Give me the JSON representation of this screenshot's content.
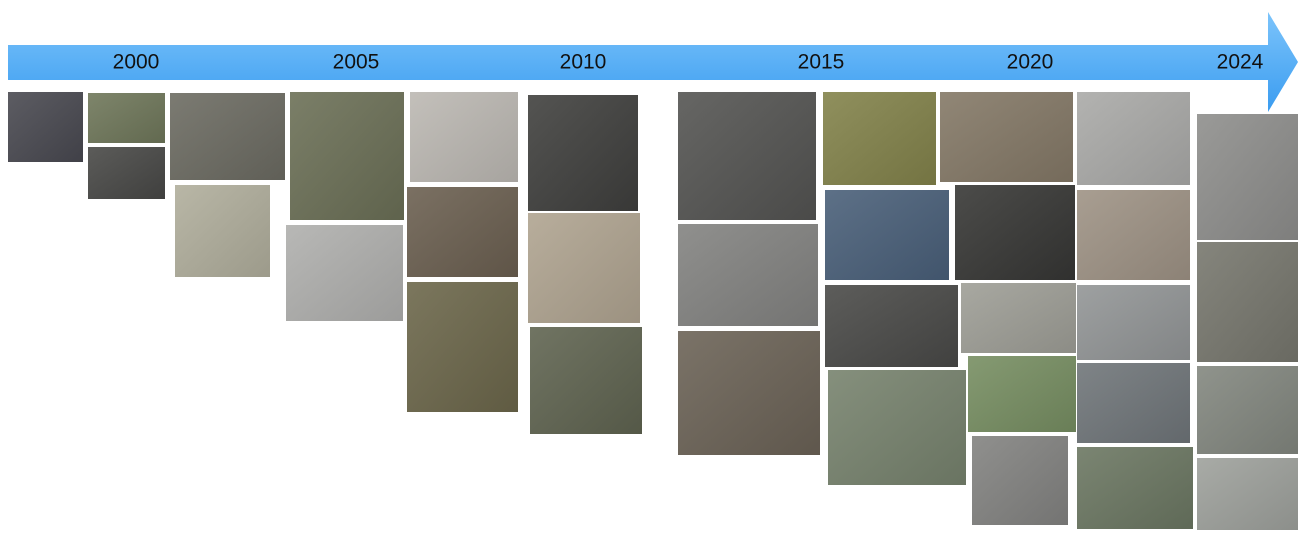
{
  "timeline": {
    "labels": [
      "2000",
      "2005",
      "2010",
      "2015",
      "2020",
      "2024"
    ]
  }
}
